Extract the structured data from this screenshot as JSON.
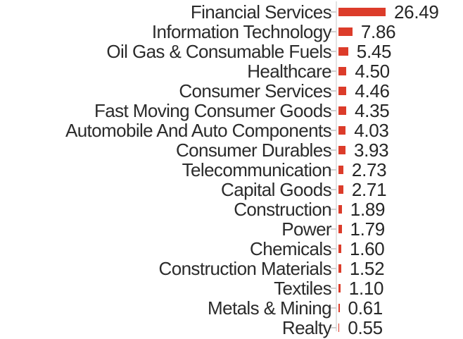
{
  "chart_data": {
    "type": "bar",
    "orientation": "horizontal",
    "title": "",
    "xlabel": "",
    "ylabel": "",
    "categories": [
      "Financial Services",
      "Information Technology",
      "Oil Gas & Consumable Fuels",
      "Healthcare",
      "Consumer Services",
      "Fast Moving Consumer Goods",
      "Automobile And Auto Components",
      "Consumer Durables",
      "Telecommunication",
      "Capital Goods",
      "Construction",
      "Power",
      "Chemicals",
      "Construction Materials",
      "Textiles",
      "Metals & Mining",
      "Realty"
    ],
    "values": [
      26.49,
      7.86,
      5.45,
      4.5,
      4.46,
      4.35,
      4.03,
      3.93,
      2.73,
      2.71,
      1.89,
      1.79,
      1.6,
      1.52,
      1.1,
      0.61,
      0.55
    ],
    "value_labels": [
      "26.49",
      "7.86",
      "5.45",
      "4.50",
      "4.46",
      "4.35",
      "4.03",
      "3.93",
      "2.73",
      "2.71",
      "1.89",
      "1.79",
      "1.60",
      "1.52",
      "1.10",
      "0.61",
      "0.55"
    ],
    "xlim": [
      0,
      26.49
    ],
    "grid": false,
    "legend": false,
    "bar_color": "#dc3c2a",
    "axis_color": "#e2e2e2",
    "tick_color": "#cfcfcf",
    "label_color": "#2b2b2b",
    "value_color": "#262626"
  }
}
